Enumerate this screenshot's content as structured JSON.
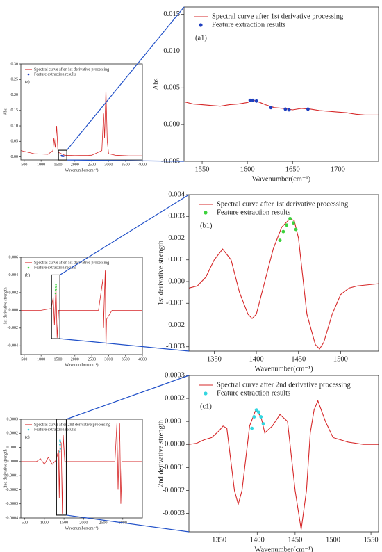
{
  "chart_data": [
    {
      "type": "line",
      "panel": "(a)",
      "xlabel": "Wavenumber(cm⁻¹)",
      "ylabel": "Abs",
      "xlim": [
        400,
        4000
      ],
      "ylim": [
        -0.01,
        0.3
      ],
      "xticks": [
        500,
        1000,
        1500,
        2000,
        2500,
        3000,
        3500,
        4000
      ],
      "yticks": [
        {
          "value": 0,
          "label": "0.00"
        },
        {
          "value": 0.05,
          "label": "0.05"
        },
        {
          "value": 0.1,
          "label": "0.10"
        },
        {
          "value": 0.15,
          "label": "0.15"
        },
        {
          "value": 0.2,
          "label": "0.20"
        },
        {
          "value": 0.25,
          "label": "0.25"
        },
        {
          "value": 0.3,
          "label": "0.30"
        }
      ],
      "series": [
        {
          "name": "Spectral curve after 1st derivative processing",
          "color": "#d62728",
          "mode": "lines",
          "x": [
            400,
            800,
            1200,
            1350,
            1380,
            1420,
            1460,
            1500,
            1700,
            2000,
            2500,
            2800,
            2850,
            2880,
            2920,
            2960,
            3000,
            3200,
            3600,
            4000
          ],
          "values": [
            0.02,
            0.01,
            0.008,
            0.02,
            0.06,
            0.03,
            0.1,
            0.015,
            0.005,
            0.004,
            0.005,
            0.02,
            0.14,
            0.06,
            0.22,
            0.05,
            0.01,
            0.005,
            0.003,
            0.003
          ]
        },
        {
          "name": "Feature extraction results",
          "color": "#1f3fbf",
          "mode": "markers",
          "x": [
            1603,
            1606,
            1610,
            1626,
            1642,
            1646,
            1667
          ],
          "values": [
            0.0033,
            0.0033,
            0.0032,
            0.0023,
            0.0021,
            0.002,
            0.0021
          ]
        }
      ]
    },
    {
      "type": "line",
      "panel": "(a1)",
      "xlabel": "Wavenumber(cm⁻¹)",
      "ylabel": "Abs",
      "xlim": [
        1530,
        1745
      ],
      "ylim": [
        -0.005,
        0.016
      ],
      "xticks": [
        1550,
        1600,
        1650,
        1700
      ],
      "yticks": [
        {
          "value": -0.005,
          "label": "-0.005"
        },
        {
          "value": 0,
          "label": "0.000"
        },
        {
          "value": 0.005,
          "label": "0.005"
        },
        {
          "value": 0.01,
          "label": "0.010"
        },
        {
          "value": 0.015,
          "label": "0.015"
        }
      ],
      "series": [
        {
          "name": "Spectral curve after 1st derivative processing",
          "color": "#d62728",
          "mode": "lines",
          "x": [
            1530,
            1540,
            1550,
            1560,
            1570,
            1580,
            1590,
            1600,
            1606,
            1610,
            1620,
            1630,
            1640,
            1650,
            1660,
            1670,
            1680,
            1690,
            1700,
            1710,
            1720,
            1730,
            1745
          ],
          "values": [
            0.0031,
            0.0028,
            0.0027,
            0.0026,
            0.0025,
            0.0027,
            0.0028,
            0.003,
            0.0033,
            0.0032,
            0.0027,
            0.0023,
            0.0022,
            0.002,
            0.0022,
            0.0021,
            0.0019,
            0.0018,
            0.0017,
            0.0016,
            0.0014,
            0.0013,
            0.0013
          ]
        },
        {
          "name": "Feature extraction results",
          "color": "#1f3fbf",
          "mode": "markers",
          "x": [
            1603,
            1606,
            1610,
            1626,
            1642,
            1646,
            1667
          ],
          "values": [
            0.0033,
            0.0033,
            0.0032,
            0.0023,
            0.0021,
            0.002,
            0.0021
          ]
        }
      ]
    },
    {
      "type": "line",
      "panel": "(b)",
      "xlabel": "Wavenumber(cm⁻¹)",
      "ylabel": "1st derivative strength",
      "xlim": [
        400,
        4000
      ],
      "ylim": [
        -0.005,
        0.006
      ],
      "xticks": [
        500,
        1000,
        1500,
        2000,
        2500,
        3000,
        3500,
        4000
      ],
      "yticks": [
        -0.004,
        -0.002,
        {
          "value": 0,
          "label": "0.000"
        },
        0.002,
        0.004,
        0.006
      ],
      "series": [
        {
          "name": "Spectral curve after 1st derivative processing",
          "color": "#d62728",
          "mode": "lines",
          "x": [
            400,
            1000,
            1300,
            1360,
            1395,
            1440,
            1475,
            1520,
            2000,
            2700,
            2830,
            2850,
            2870,
            2900,
            2920,
            2940,
            3100,
            4000
          ],
          "values": [
            0,
            0,
            0.0002,
            0.0015,
            -0.0017,
            0.0029,
            -0.0031,
            0,
            0,
            0,
            0.0035,
            -0.002,
            0.001,
            0.0045,
            -0.0045,
            -0.001,
            0,
            0
          ]
        },
        {
          "name": "Feature extraction results",
          "color": "#3cd23c",
          "mode": "markers",
          "x": [
            1428,
            1432,
            1436,
            1440,
            1444,
            1447
          ],
          "values": [
            0.0019,
            0.0023,
            0.0026,
            0.0029,
            0.0027,
            0.0024
          ]
        }
      ]
    },
    {
      "type": "line",
      "panel": "(b1)",
      "xlabel": "Wavenumber(cm⁻¹)",
      "ylabel": "1st derivative strength",
      "xlim": [
        1320,
        1545
      ],
      "ylim": [
        -0.0032,
        0.004
      ],
      "xticks": [
        1350,
        1400,
        1450,
        1500
      ],
      "yticks": [
        -0.003,
        -0.002,
        -0.001,
        {
          "value": 0,
          "label": "0.000"
        },
        0.001,
        0.002,
        0.003,
        0.004
      ],
      "series": [
        {
          "name": "Spectral curve after 1st derivative processing",
          "color": "#d62728",
          "mode": "lines",
          "x": [
            1320,
            1330,
            1340,
            1350,
            1360,
            1370,
            1380,
            1390,
            1395,
            1400,
            1410,
            1420,
            1430,
            1440,
            1445,
            1450,
            1460,
            1470,
            1475,
            1480,
            1490,
            1500,
            1510,
            1520,
            1545
          ],
          "values": [
            -0.0003,
            -0.0002,
            0.0002,
            0.001,
            0.0015,
            0.001,
            -0.0005,
            -0.0015,
            -0.0017,
            -0.0015,
            0,
            0.0015,
            0.0025,
            0.0029,
            0.0028,
            0.002,
            -0.0015,
            -0.0029,
            -0.0031,
            -0.0028,
            -0.0015,
            -0.0006,
            -0.0003,
            -0.0002,
            -0.0001
          ]
        },
        {
          "name": "Feature extraction results",
          "color": "#3cd23c",
          "mode": "markers",
          "x": [
            1428,
            1432,
            1436,
            1440,
            1444,
            1447
          ],
          "values": [
            0.0019,
            0.0023,
            0.0026,
            0.0029,
            0.0027,
            0.0024
          ]
        }
      ]
    },
    {
      "type": "line",
      "panel": "(c)",
      "xlabel": "Wavenumber(cm⁻¹)",
      "ylabel": "2nd derivative strength",
      "xlim": [
        400,
        3500
      ],
      "ylim": [
        -0.0004,
        0.0003
      ],
      "xticks": [
        500,
        1000,
        1500,
        2000,
        2500,
        3000
      ],
      "yticks": [
        -0.0004,
        -0.0003,
        -0.0002,
        -0.0001,
        {
          "value": 0,
          "label": "0.0000"
        },
        0.0001,
        0.0002,
        0.0003
      ],
      "series": [
        {
          "name": "Spectral curve after 2nd derivative processing",
          "color": "#d62728",
          "mode": "lines",
          "x": [
            400,
            800,
            900,
            1000,
            1100,
            1200,
            1300,
            1360,
            1380,
            1400,
            1430,
            1458,
            1480,
            1520,
            2000,
            2800,
            2850,
            2880,
            2920,
            2950,
            2980,
            3100,
            3500
          ],
          "values": [
            0,
            0,
            2e-05,
            -2e-05,
            3e-05,
            -2e-05,
            1e-05,
            8e-05,
            -0.00026,
            0.00015,
            0.00013,
            -0.00037,
            0.00019,
            0,
            0,
            0,
            0.00027,
            -0.0002,
            0.00027,
            -0.0003,
            0,
            0,
            0
          ]
        },
        {
          "name": "Feature extraction results",
          "color": "#33d6e0",
          "mode": "markers",
          "x": [
            1393,
            1396,
            1399,
            1402,
            1405,
            1408
          ],
          "values": [
            7e-05,
            0.00012,
            0.00015,
            0.00014,
            0.00012,
            9e-05
          ]
        }
      ]
    },
    {
      "type": "line",
      "panel": "(c1)",
      "xlabel": "Wavenumber(cm⁻¹)",
      "ylabel": "2nd derivative strength",
      "xlim": [
        1310,
        1560
      ],
      "ylim": [
        -0.00038,
        0.0003
      ],
      "xticks": [
        1350,
        1400,
        1450,
        1500,
        1550
      ],
      "yticks": [
        -0.0003,
        -0.0002,
        -0.0001,
        {
          "value": 0,
          "label": "0.0000"
        },
        0.0001,
        0.0002,
        0.0003
      ],
      "series": [
        {
          "name": "Spectral curve after 2nd derivative processing",
          "color": "#d62728",
          "mode": "lines",
          "x": [
            1310,
            1320,
            1330,
            1340,
            1350,
            1355,
            1360,
            1370,
            1375,
            1380,
            1390,
            1398,
            1405,
            1410,
            1420,
            1430,
            1440,
            1450,
            1458,
            1465,
            1470,
            1475,
            1480,
            1490,
            1500,
            1520,
            1540,
            1560
          ],
          "values": [
            0,
            5e-06,
            2e-05,
            3e-05,
            6e-05,
            8e-05,
            7e-05,
            -0.0002,
            -0.00026,
            -0.0002,
            8e-05,
            0.00015,
            0.00012,
            5e-05,
            8e-05,
            0.00013,
            0.0001,
            -0.0002,
            -0.00037,
            -0.0002,
            5e-05,
            0.00015,
            0.00019,
            0.0001,
            3e-05,
            1e-05,
            0,
            0
          ]
        },
        {
          "name": "Feature extraction results",
          "color": "#33d6e0",
          "mode": "markers",
          "x": [
            1393,
            1396,
            1399,
            1402,
            1405,
            1408
          ],
          "values": [
            7e-05,
            0.00012,
            0.00015,
            0.00014,
            0.00012,
            9e-05
          ]
        }
      ]
    }
  ]
}
